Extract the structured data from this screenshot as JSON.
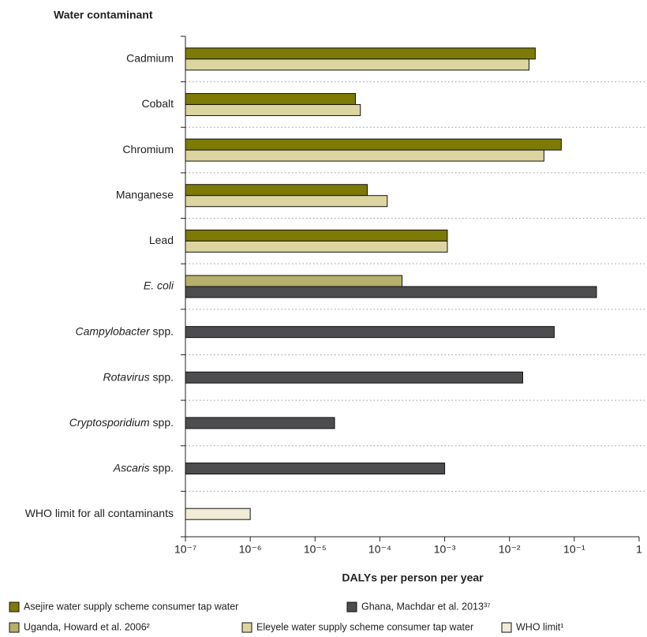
{
  "chart_data": {
    "type": "bar",
    "orientation": "horizontal",
    "x_label": "DALYs per person per year",
    "y_label": "Water contaminant",
    "categories": [
      "Cadmium",
      "Cobalt",
      "Chromium",
      "Manganese",
      "Lead",
      "E. coli",
      "Campylobacter spp.",
      "Rotavirus spp.",
      "Cryptosporidium spp.",
      "Ascaris spp.",
      "WHO limit for all contaminants"
    ],
    "series": [
      {
        "name": "Asejire water supply scheme consumer tap water",
        "color": "#7d7a05",
        "values": [
          0.025,
          4.2e-05,
          0.063,
          6.4e-05,
          0.0011,
          null,
          null,
          null,
          null,
          null,
          null
        ]
      },
      {
        "name": "Uganda, Howard et al. 2006²",
        "color": "#b5b06a",
        "values": [
          null,
          null,
          null,
          null,
          null,
          0.00022,
          null,
          null,
          null,
          null,
          null
        ]
      },
      {
        "name": "Eleyele water supply scheme consumer tap water",
        "color": "#ddd5a0",
        "values": [
          0.02,
          5e-05,
          0.034,
          0.00013,
          0.0011,
          null,
          null,
          null,
          null,
          null,
          null
        ]
      },
      {
        "name": "Ghana, Machdar et al. 2013³⁷",
        "color": "#4d4d4f",
        "values": [
          null,
          null,
          null,
          null,
          null,
          0.22,
          0.049,
          0.016,
          2e-05,
          0.001,
          null
        ]
      },
      {
        "name": "WHO limit¹",
        "color": "#f0ecd8",
        "values": [
          null,
          null,
          null,
          null,
          null,
          null,
          null,
          null,
          null,
          null,
          1e-06
        ]
      }
    ],
    "xscale": "log",
    "xlim": [
      1e-07,
      1
    ],
    "xticks": [
      {
        "value": 1e-07,
        "label": "10⁻⁷"
      },
      {
        "value": 1e-06,
        "label": "10⁻⁶"
      },
      {
        "value": 1e-05,
        "label": "10⁻⁵"
      },
      {
        "value": 0.0001,
        "label": "10⁻⁴"
      },
      {
        "value": 0.001,
        "label": "10⁻³"
      },
      {
        "value": 0.01,
        "label": "10⁻²"
      },
      {
        "value": 0.1,
        "label": "10⁻¹"
      },
      1
    ],
    "grid": true
  }
}
